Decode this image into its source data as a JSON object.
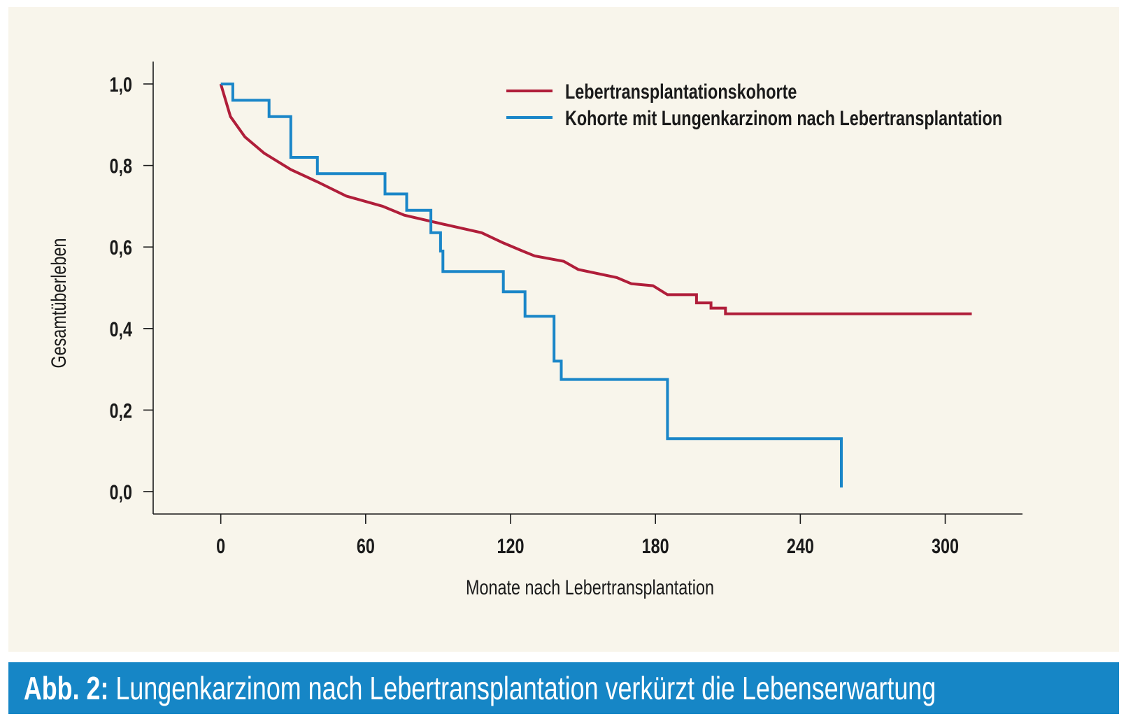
{
  "chart_data": {
    "type": "line",
    "step": true,
    "xlabel": "Monate nach Lebertransplantation",
    "ylabel": "Gesamtüberleben",
    "xlim": [
      -28,
      332
    ],
    "ylim": [
      -0.055,
      1.055
    ],
    "x_ticks": [
      0,
      60,
      120,
      180,
      240,
      300
    ],
    "x_tick_labels": [
      "0",
      "60",
      "120",
      "180",
      "240",
      "300"
    ],
    "y_ticks": [
      0.0,
      0.2,
      0.4,
      0.6,
      0.8,
      1.0
    ],
    "y_tick_labels": [
      "0,0",
      "0,2",
      "0,4",
      "0,6",
      "0,8",
      "1,0"
    ],
    "grid": false,
    "legend_position": "top-right",
    "series": [
      {
        "name": "Lebertransplantationskohorte",
        "color": "#b01e3a",
        "points": [
          [
            0,
            1.0
          ],
          [
            4,
            0.92
          ],
          [
            10,
            0.87
          ],
          [
            18,
            0.83
          ],
          [
            29,
            0.79
          ],
          [
            40,
            0.76
          ],
          [
            52,
            0.725
          ],
          [
            67,
            0.7
          ],
          [
            76,
            0.678
          ],
          [
            93,
            0.655
          ],
          [
            108,
            0.635
          ],
          [
            117,
            0.61
          ],
          [
            125,
            0.59
          ],
          [
            130,
            0.578
          ],
          [
            142,
            0.565
          ],
          [
            148,
            0.545
          ],
          [
            164,
            0.525
          ],
          [
            170,
            0.51
          ],
          [
            179,
            0.505
          ],
          [
            185,
            0.483
          ],
          [
            197,
            0.483
          ],
          [
            197,
            0.463
          ],
          [
            203,
            0.463
          ],
          [
            203,
            0.45
          ],
          [
            209,
            0.45
          ],
          [
            209,
            0.436
          ],
          [
            311,
            0.436
          ]
        ]
      },
      {
        "name": "Kohorte mit Lungenkarzinom nach Lebertransplantation",
        "color": "#1a86c8",
        "points": [
          [
            0,
            1.0
          ],
          [
            5,
            1.0
          ],
          [
            5,
            0.96
          ],
          [
            20,
            0.96
          ],
          [
            20,
            0.92
          ],
          [
            29,
            0.92
          ],
          [
            29,
            0.82
          ],
          [
            40,
            0.82
          ],
          [
            40,
            0.78
          ],
          [
            68,
            0.78
          ],
          [
            68,
            0.73
          ],
          [
            77,
            0.73
          ],
          [
            77,
            0.69
          ],
          [
            87,
            0.69
          ],
          [
            87,
            0.635
          ],
          [
            91,
            0.635
          ],
          [
            91,
            0.59
          ],
          [
            92,
            0.59
          ],
          [
            92,
            0.54
          ],
          [
            117,
            0.54
          ],
          [
            117,
            0.49
          ],
          [
            126,
            0.49
          ],
          [
            126,
            0.43
          ],
          [
            138,
            0.43
          ],
          [
            138,
            0.32
          ],
          [
            141,
            0.32
          ],
          [
            141,
            0.275
          ],
          [
            185,
            0.275
          ],
          [
            185,
            0.13
          ],
          [
            257,
            0.13
          ],
          [
            257,
            0.01
          ]
        ]
      }
    ]
  },
  "caption": {
    "label": "Abb. 2:",
    "text": " Lungenkarzinom nach Lebertransplantation verkürzt die Lebenserwartung"
  }
}
